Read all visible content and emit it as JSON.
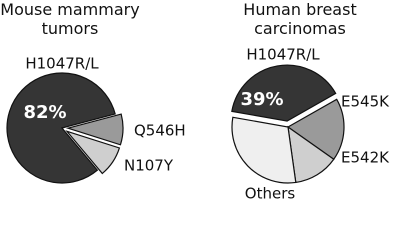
{
  "chart_data": [
    {
      "type": "pie",
      "title": "Mouse mammary tumors",
      "categories": [
        "H1047R/L",
        "Q546H",
        "N107Y"
      ],
      "values": [
        82,
        9,
        9
      ],
      "value_labels": [
        "82%",
        null,
        null
      ],
      "colors": [
        "#353535",
        "#9a9a9a",
        "#cfcfcf"
      ]
    },
    {
      "type": "pie",
      "title": "Human breast carcinomas",
      "categories": [
        "H1047R/L",
        "E545K",
        "E542K",
        "Others"
      ],
      "values": [
        39,
        18,
        13,
        30
      ],
      "value_labels": [
        "39%",
        null,
        null,
        null
      ],
      "colors": [
        "#353535",
        "#9a9a9a",
        "#cfcfcf",
        "#efefef"
      ]
    }
  ]
}
